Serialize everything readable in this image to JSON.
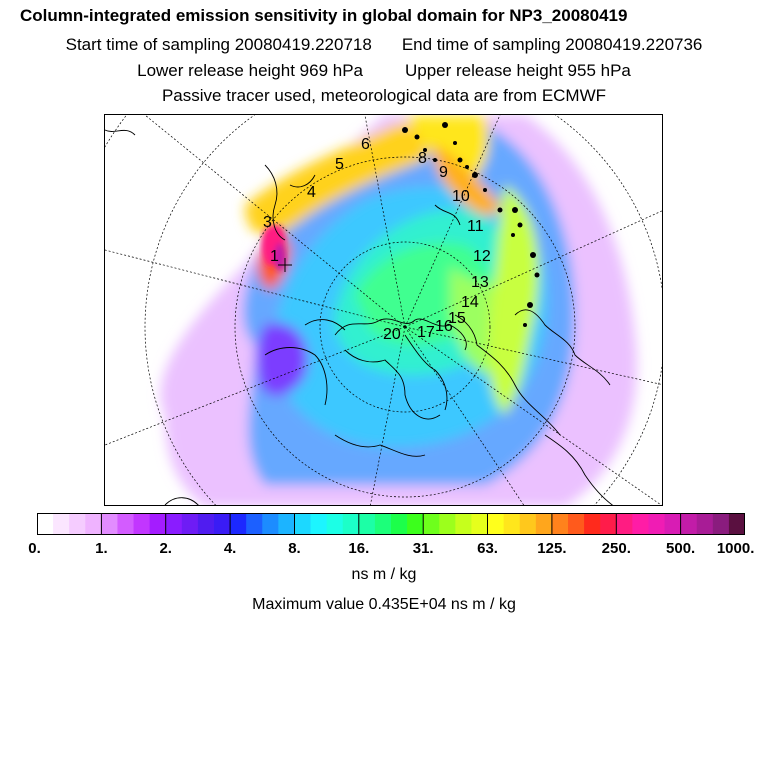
{
  "header": {
    "title": "Column-integrated emission sensitivity in global domain for NP3_20080419",
    "start_time": "Start time of sampling 20080419.220718",
    "end_time": "End time of sampling 20080419.220736",
    "lower_release": "Lower release height  969 hPa",
    "upper_release": "Upper release height  955 hPa",
    "note": "Passive tracer used, meteorological data are from ECMWF"
  },
  "map": {
    "track_labels": [
      "1",
      "3",
      "4",
      "5",
      "6",
      "8",
      "9",
      "10",
      "11",
      "12",
      "13",
      "14",
      "15",
      "16",
      "17",
      "20"
    ]
  },
  "colorbar": {
    "tick_labels": [
      "0.",
      "1.",
      "2.",
      "4.",
      "8.",
      "16.",
      "31.",
      "63.",
      "125.",
      "250.",
      "500.",
      "1000."
    ],
    "colors": [
      "#ffffff",
      "#fbe6ff",
      "#f5ccff",
      "#efb3ff",
      "#e28cff",
      "#d35cff",
      "#c236ff",
      "#a41cff",
      "#8a1cff",
      "#6e1cf5",
      "#501cf0",
      "#3a1cf5",
      "#1c28ff",
      "#1c60ff",
      "#1c8cff",
      "#1cb4ff",
      "#1cd8ff",
      "#1cf5ff",
      "#1cffe6",
      "#1cffc8",
      "#1cffa6",
      "#1cff7a",
      "#1cff4a",
      "#3cff1c",
      "#6eff1c",
      "#9cff1c",
      "#c6ff1c",
      "#e6ff1c",
      "#ffff1c",
      "#ffe61c",
      "#ffc81c",
      "#ffa61c",
      "#ff821c",
      "#ff5a1c",
      "#ff2a1c",
      "#ff1c4a",
      "#ff1c82",
      "#ff1ca6",
      "#f01cb4",
      "#d81cb4",
      "#c21ca8",
      "#a81c96",
      "#8a1c7e",
      "#5a1040"
    ],
    "units": "ns m / kg"
  },
  "max_value": "Maximum value  0.435E+04 ns m / kg"
}
